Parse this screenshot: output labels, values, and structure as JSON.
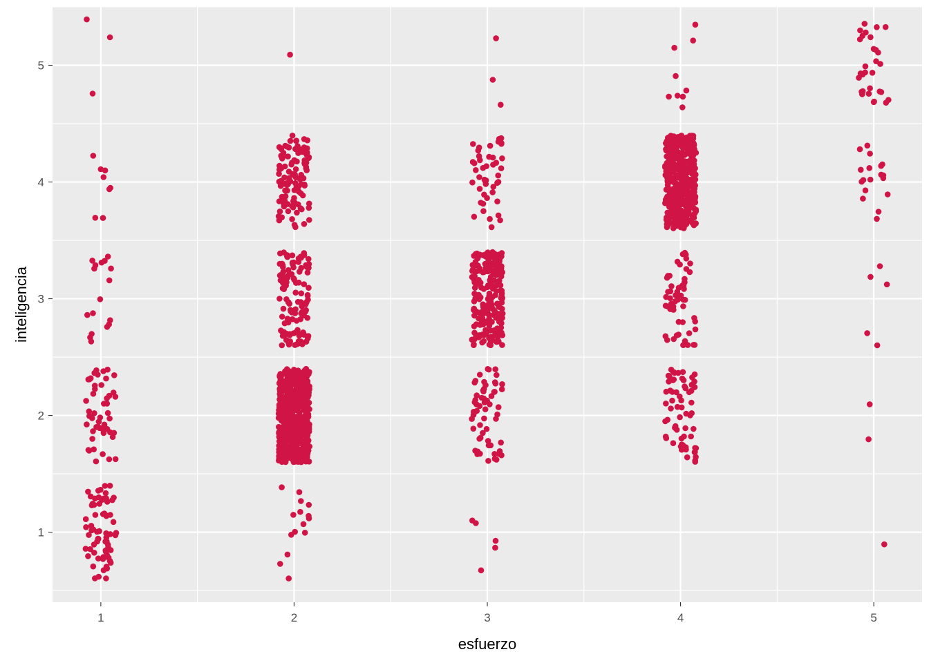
{
  "colors": {
    "panel": "#ebebeb",
    "grid_major": "#ffffff",
    "point": "#d01446",
    "tick": "#333333"
  },
  "chart_data": {
    "type": "scatter",
    "title": "",
    "xlabel": "esfuerzo",
    "ylabel": "inteligencia",
    "xlim": [
      0.75,
      5.25
    ],
    "ylim": [
      0.4,
      5.5
    ],
    "x_ticks": [
      1,
      2,
      3,
      4,
      5
    ],
    "x_tick_labels": [
      "1",
      "2",
      "3",
      "4",
      "5"
    ],
    "y_ticks": [
      1,
      2,
      3,
      4,
      5
    ],
    "y_tick_labels": [
      "1",
      "2",
      "3",
      "4",
      "5"
    ],
    "grid": true,
    "legend": "none",
    "jitter": {
      "x": 0.08,
      "y": 0.4
    },
    "groups": [
      {
        "x": 1,
        "y": 1,
        "count": 70
      },
      {
        "x": 1,
        "y": 2,
        "count": 50
      },
      {
        "x": 1,
        "y": 3,
        "count": 17
      },
      {
        "x": 1,
        "y": 4,
        "count": 8
      },
      {
        "x": 1,
        "y": 5,
        "count": 3
      },
      {
        "x": 2,
        "y": 1,
        "count": 15
      },
      {
        "x": 2,
        "y": 2,
        "count": 600
      },
      {
        "x": 2,
        "y": 3,
        "count": 120
      },
      {
        "x": 2,
        "y": 4,
        "count": 110
      },
      {
        "x": 2,
        "y": 5,
        "count": 1
      },
      {
        "x": 3,
        "y": 1,
        "count": 5
      },
      {
        "x": 3,
        "y": 2,
        "count": 60
      },
      {
        "x": 3,
        "y": 3,
        "count": 220
      },
      {
        "x": 3,
        "y": 4,
        "count": 45
      },
      {
        "x": 3,
        "y": 5,
        "count": 3
      },
      {
        "x": 4,
        "y": 2,
        "count": 65
      },
      {
        "x": 4,
        "y": 3,
        "count": 55
      },
      {
        "x": 4,
        "y": 4,
        "count": 420
      },
      {
        "x": 4,
        "y": 5,
        "count": 9
      },
      {
        "x": 5,
        "y": 1,
        "count": 1
      },
      {
        "x": 5,
        "y": 2,
        "count": 2
      },
      {
        "x": 5,
        "y": 3,
        "count": 5
      },
      {
        "x": 5,
        "y": 4,
        "count": 18
      },
      {
        "x": 5,
        "y": 5,
        "count": 30
      }
    ]
  }
}
